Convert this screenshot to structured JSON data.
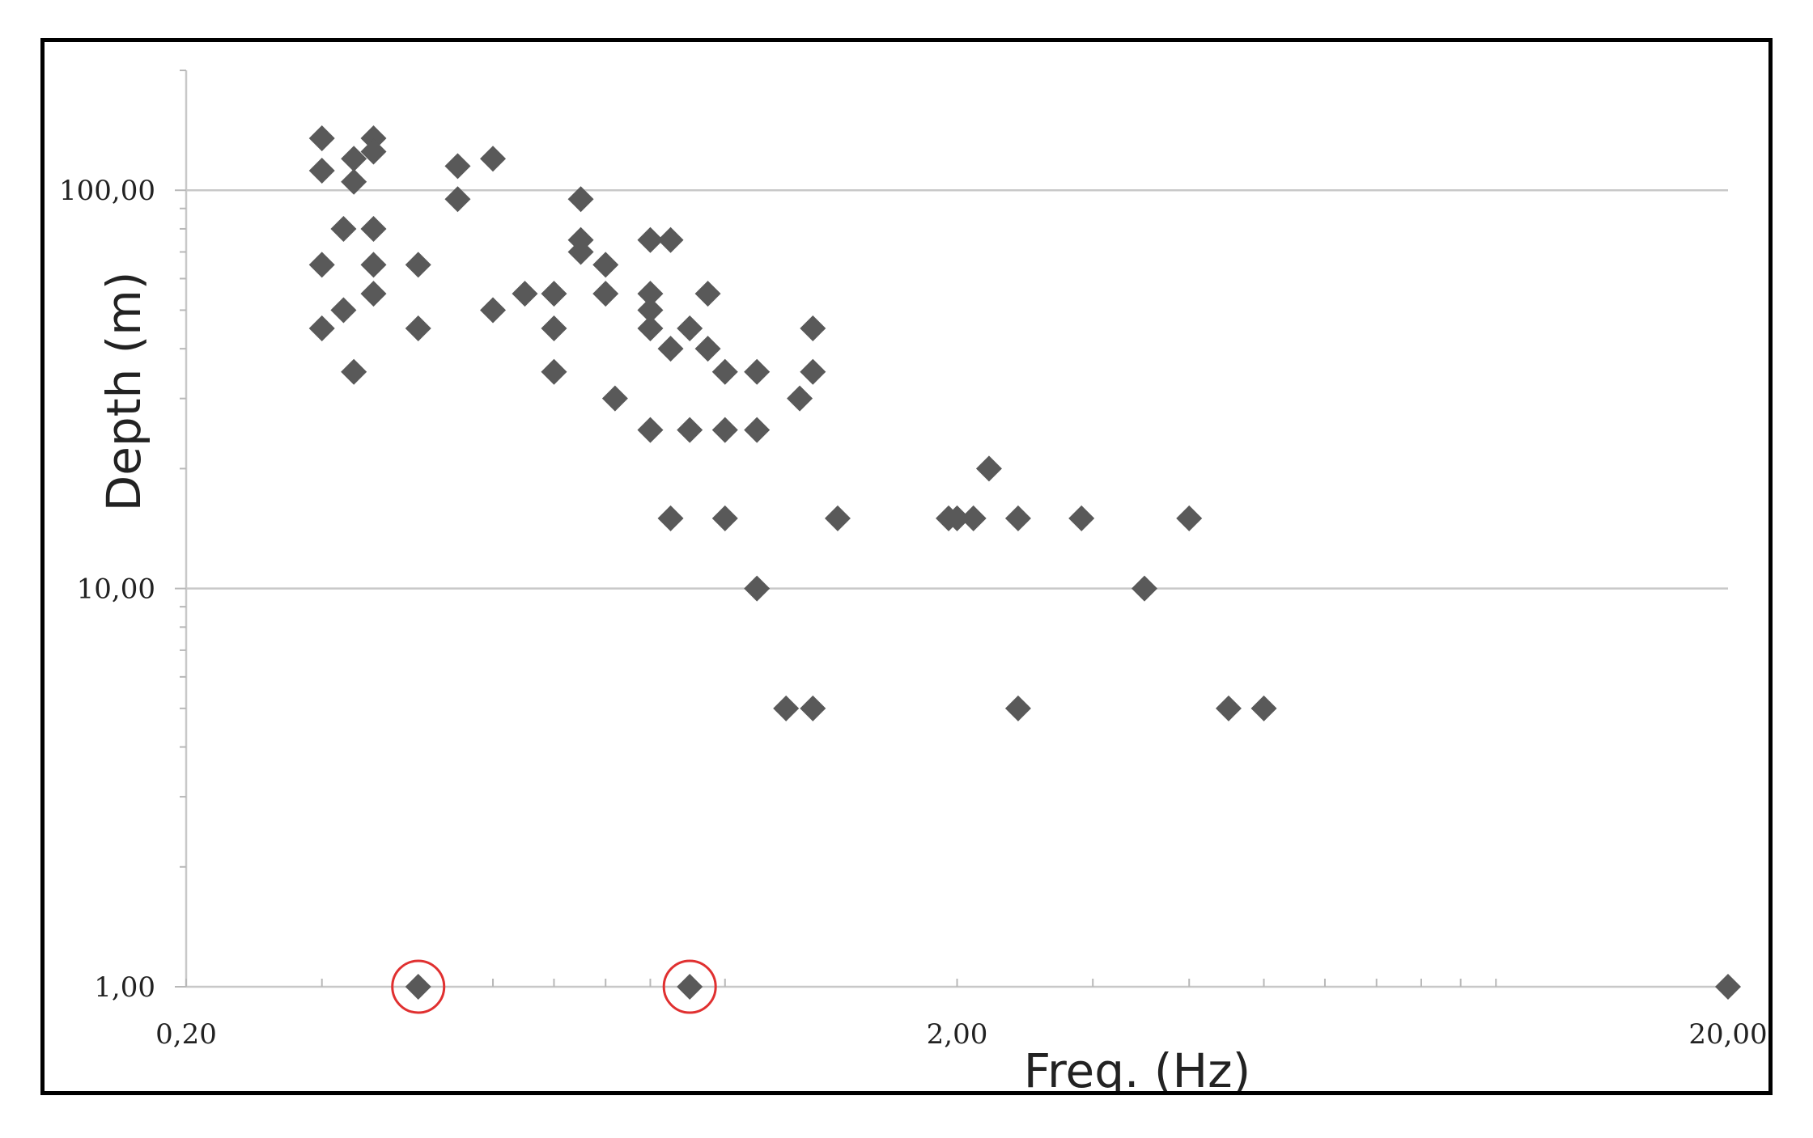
{
  "chart_data": {
    "type": "scatter",
    "xlabel": "Freq. (Hz)",
    "ylabel": "Depth (m)",
    "x_scale": "log",
    "y_scale": "log",
    "xlim": [
      0.2,
      20
    ],
    "ylim": [
      1,
      200
    ],
    "x_ticks": [
      {
        "value": 0.2,
        "label": "0,20"
      },
      {
        "value": 2,
        "label": "2,00"
      },
      {
        "value": 20,
        "label": "20,00"
      }
    ],
    "y_ticks": [
      {
        "value": 1,
        "label": "1,00"
      },
      {
        "value": 10,
        "label": "10,00"
      },
      {
        "value": 100,
        "label": "100,00"
      }
    ],
    "gridlines": "horizontal at major y ticks",
    "marker": "diamond",
    "marker_color": "#595959",
    "highlight_color": "#e03030",
    "points": [
      {
        "x": 0.3,
        "y": 135
      },
      {
        "x": 0.3,
        "y": 112
      },
      {
        "x": 0.3,
        "y": 65
      },
      {
        "x": 0.3,
        "y": 45
      },
      {
        "x": 0.32,
        "y": 80
      },
      {
        "x": 0.32,
        "y": 50
      },
      {
        "x": 0.33,
        "y": 120
      },
      {
        "x": 0.33,
        "y": 105
      },
      {
        "x": 0.33,
        "y": 35
      },
      {
        "x": 0.35,
        "y": 135
      },
      {
        "x": 0.35,
        "y": 125
      },
      {
        "x": 0.35,
        "y": 80
      },
      {
        "x": 0.35,
        "y": 65
      },
      {
        "x": 0.35,
        "y": 55
      },
      {
        "x": 0.4,
        "y": 65
      },
      {
        "x": 0.4,
        "y": 45
      },
      {
        "x": 0.4,
        "y": 1
      },
      {
        "x": 0.45,
        "y": 115
      },
      {
        "x": 0.45,
        "y": 95
      },
      {
        "x": 0.5,
        "y": 120
      },
      {
        "x": 0.5,
        "y": 50
      },
      {
        "x": 0.55,
        "y": 55
      },
      {
        "x": 0.6,
        "y": 55
      },
      {
        "x": 0.6,
        "y": 45
      },
      {
        "x": 0.6,
        "y": 35
      },
      {
        "x": 0.65,
        "y": 95
      },
      {
        "x": 0.65,
        "y": 75
      },
      {
        "x": 0.65,
        "y": 70
      },
      {
        "x": 0.7,
        "y": 65
      },
      {
        "x": 0.7,
        "y": 55
      },
      {
        "x": 0.72,
        "y": 30
      },
      {
        "x": 0.8,
        "y": 75
      },
      {
        "x": 0.8,
        "y": 55
      },
      {
        "x": 0.8,
        "y": 50
      },
      {
        "x": 0.8,
        "y": 45
      },
      {
        "x": 0.8,
        "y": 25
      },
      {
        "x": 0.85,
        "y": 75
      },
      {
        "x": 0.85,
        "y": 40
      },
      {
        "x": 0.85,
        "y": 15
      },
      {
        "x": 0.9,
        "y": 45
      },
      {
        "x": 0.9,
        "y": 25
      },
      {
        "x": 0.9,
        "y": 1
      },
      {
        "x": 0.95,
        "y": 55
      },
      {
        "x": 0.95,
        "y": 40
      },
      {
        "x": 1.0,
        "y": 35
      },
      {
        "x": 1.0,
        "y": 25
      },
      {
        "x": 1.0,
        "y": 15
      },
      {
        "x": 1.1,
        "y": 35
      },
      {
        "x": 1.1,
        "y": 25
      },
      {
        "x": 1.1,
        "y": 10
      },
      {
        "x": 1.2,
        "y": 5
      },
      {
        "x": 1.25,
        "y": 30
      },
      {
        "x": 1.3,
        "y": 45
      },
      {
        "x": 1.3,
        "y": 35
      },
      {
        "x": 1.3,
        "y": 5
      },
      {
        "x": 1.4,
        "y": 15
      },
      {
        "x": 1.95,
        "y": 15
      },
      {
        "x": 2.0,
        "y": 15
      },
      {
        "x": 2.1,
        "y": 15
      },
      {
        "x": 2.2,
        "y": 20
      },
      {
        "x": 2.4,
        "y": 15
      },
      {
        "x": 2.4,
        "y": 5
      },
      {
        "x": 2.9,
        "y": 15
      },
      {
        "x": 3.5,
        "y": 10
      },
      {
        "x": 4.0,
        "y": 15
      },
      {
        "x": 4.5,
        "y": 5
      },
      {
        "x": 5.0,
        "y": 5
      },
      {
        "x": 20.0,
        "y": 1
      }
    ],
    "highlighted_points": [
      {
        "x": 0.4,
        "y": 1
      },
      {
        "x": 0.9,
        "y": 1
      }
    ]
  }
}
